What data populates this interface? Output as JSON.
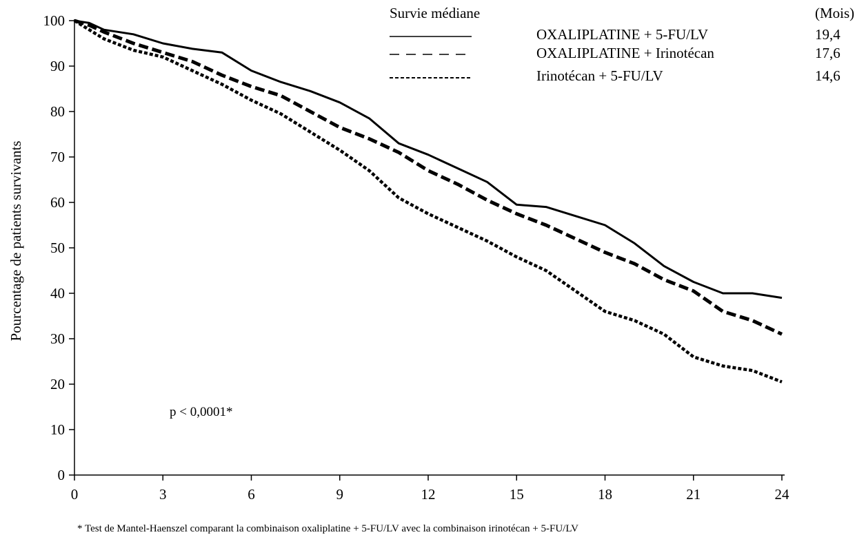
{
  "chart_data": {
    "type": "line",
    "title": "",
    "xlabel": "",
    "ylabel": "Pourcentage de patients survivants",
    "xlim": [
      0,
      24
    ],
    "ylim": [
      0,
      100
    ],
    "x_ticks": [
      0,
      3,
      6,
      9,
      12,
      15,
      18,
      21,
      24
    ],
    "y_ticks": [
      0,
      10,
      20,
      30,
      40,
      50,
      60,
      70,
      80,
      90,
      100
    ],
    "grid": false,
    "legend": {
      "title": "Survie médiane",
      "unit_header": "(Mois)",
      "placement": "top-right"
    },
    "series": [
      {
        "name": "OXALIPLATINE + 5-FU/LV",
        "median": "19,4",
        "style": "solid",
        "x": [
          0,
          0.5,
          1,
          2,
          3,
          4,
          5,
          6,
          7,
          8,
          9,
          10,
          11,
          12,
          13,
          14,
          15,
          16,
          17,
          18,
          19,
          20,
          21,
          22,
          23,
          24
        ],
        "y": [
          100,
          99.5,
          98,
          97,
          95,
          93.8,
          93,
          89,
          86.5,
          84.5,
          82,
          78.5,
          73,
          70.5,
          67.5,
          64.5,
          59.5,
          59,
          57,
          55,
          51,
          46,
          42.5,
          40,
          40,
          39
        ]
      },
      {
        "name": "OXALIPLATINE + Irinotécan",
        "median": "17,6",
        "style": "dashed",
        "x": [
          0,
          0.5,
          1,
          2,
          3,
          4,
          5,
          6,
          7,
          8,
          9,
          10,
          11,
          12,
          13,
          14,
          15,
          16,
          17,
          18,
          19,
          20,
          21,
          22,
          23,
          24
        ],
        "y": [
          100,
          99,
          97.5,
          95,
          93,
          91,
          88,
          85.5,
          83.5,
          80,
          76.5,
          74,
          71,
          67,
          64,
          60.5,
          57.5,
          55,
          52,
          49,
          46.5,
          43,
          40.5,
          36,
          34,
          31
        ]
      },
      {
        "name": "Irinotécan + 5-FU/LV",
        "median": "14,6",
        "style": "dotted",
        "x": [
          0,
          0.5,
          1,
          2,
          3,
          4,
          5,
          6,
          7,
          8,
          9,
          10,
          11,
          12,
          13,
          14,
          15,
          16,
          17,
          18,
          19,
          20,
          21,
          22,
          23,
          24
        ],
        "y": [
          100,
          98,
          96,
          93.5,
          92,
          89,
          86,
          82.5,
          79.5,
          75.5,
          71.5,
          67,
          61,
          57.5,
          54.5,
          51.5,
          48,
          45,
          40.5,
          36,
          34,
          31,
          26,
          24,
          23,
          20.5
        ]
      }
    ],
    "annotations": [
      {
        "text": "p < 0,0001*"
      }
    ],
    "footnote": "* Test de Mantel-Haenszel comparant la combinaison oxaliplatine + 5-FU/LV avec la combinaison irinotécan + 5-FU/LV"
  }
}
